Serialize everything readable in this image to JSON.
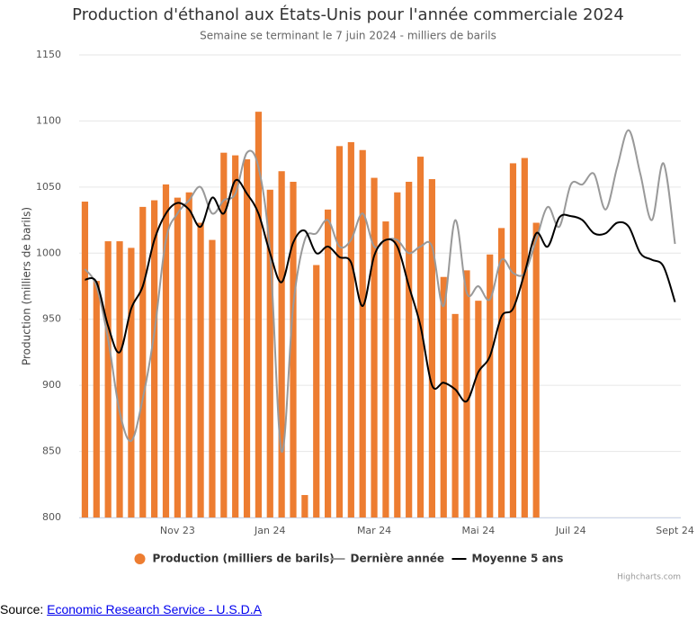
{
  "chart_data": {
    "type": "bar",
    "title": "Production d'éthanol aux États-Unis pour l'année commerciale 2024",
    "subtitle": "Semaine se terminant le 7 juin 2024 - milliers de barils",
    "y_axis_label": "Production (milliers de barils)",
    "categories": [
      null,
      null,
      null,
      null,
      null,
      null,
      null,
      null,
      "Nov 23",
      null,
      null,
      null,
      null,
      null,
      null,
      null,
      "Jan 24",
      null,
      null,
      null,
      null,
      null,
      null,
      null,
      null,
      "Mar 24",
      null,
      null,
      null,
      null,
      null,
      null,
      null,
      null,
      "Mai 24",
      null,
      null,
      null,
      null,
      null,
      null,
      null,
      "Juil 24",
      null,
      null,
      null,
      null,
      null,
      null,
      null,
      null,
      "Sept 24"
    ],
    "ylim": [
      800,
      1150
    ],
    "yticks": [
      800,
      850,
      900,
      950,
      1000,
      1050,
      1100,
      1150
    ],
    "grid": true,
    "legend": "bottom",
    "series": [
      {
        "name": "Production (milliers de barils)",
        "type": "bar",
        "color": "#ed7d31",
        "values": [
          1039,
          979,
          1009,
          1009,
          1004,
          1035,
          1040,
          1052,
          1042,
          1046,
          1023,
          1010,
          1076,
          1074,
          1071,
          1107,
          1048,
          1062,
          1054,
          817,
          991,
          1033,
          1081,
          1084,
          1078,
          1057,
          1024,
          1046,
          1054,
          1073,
          1056,
          982,
          954,
          987,
          964,
          999,
          1019,
          1068,
          1072,
          1023,
          null,
          null,
          null,
          null,
          null,
          null,
          null,
          null,
          null,
          null,
          null,
          null
        ]
      },
      {
        "name": "Dernière année",
        "type": "line",
        "color": "#999999",
        "values": [
          988,
          975,
          935,
          880,
          858,
          890,
          940,
          1010,
          1030,
          1040,
          1050,
          1030,
          1040,
          1045,
          1076,
          1065,
          1000,
          850,
          960,
          1010,
          1015,
          1025,
          1005,
          1010,
          1030,
          1005,
          1010,
          1010,
          1000,
          1005,
          1005,
          960,
          1025,
          970,
          975,
          965,
          995,
          985,
          985,
          1010,
          1035,
          1020,
          1052,
          1052,
          1060,
          1033,
          1065,
          1093,
          1060,
          1025,
          1068,
          1007
        ]
      },
      {
        "name": "Moyenne 5 ans",
        "type": "line",
        "color": "#000000",
        "values": [
          980,
          978,
          945,
          925,
          958,
          975,
          1010,
          1030,
          1038,
          1033,
          1020,
          1042,
          1030,
          1055,
          1045,
          1030,
          1000,
          978,
          1008,
          1017,
          1000,
          1005,
          997,
          993,
          960,
          998,
          1010,
          1005,
          975,
          945,
          900,
          902,
          897,
          888,
          910,
          922,
          952,
          958,
          985,
          1015,
          1005,
          1027,
          1028,
          1025,
          1015,
          1015,
          1023,
          1020,
          1000,
          995,
          990,
          963
        ]
      }
    ],
    "credit": "Highcharts.com"
  },
  "source": {
    "label": "Source:",
    "link": "Economic Research Service - U.S.D.A"
  }
}
